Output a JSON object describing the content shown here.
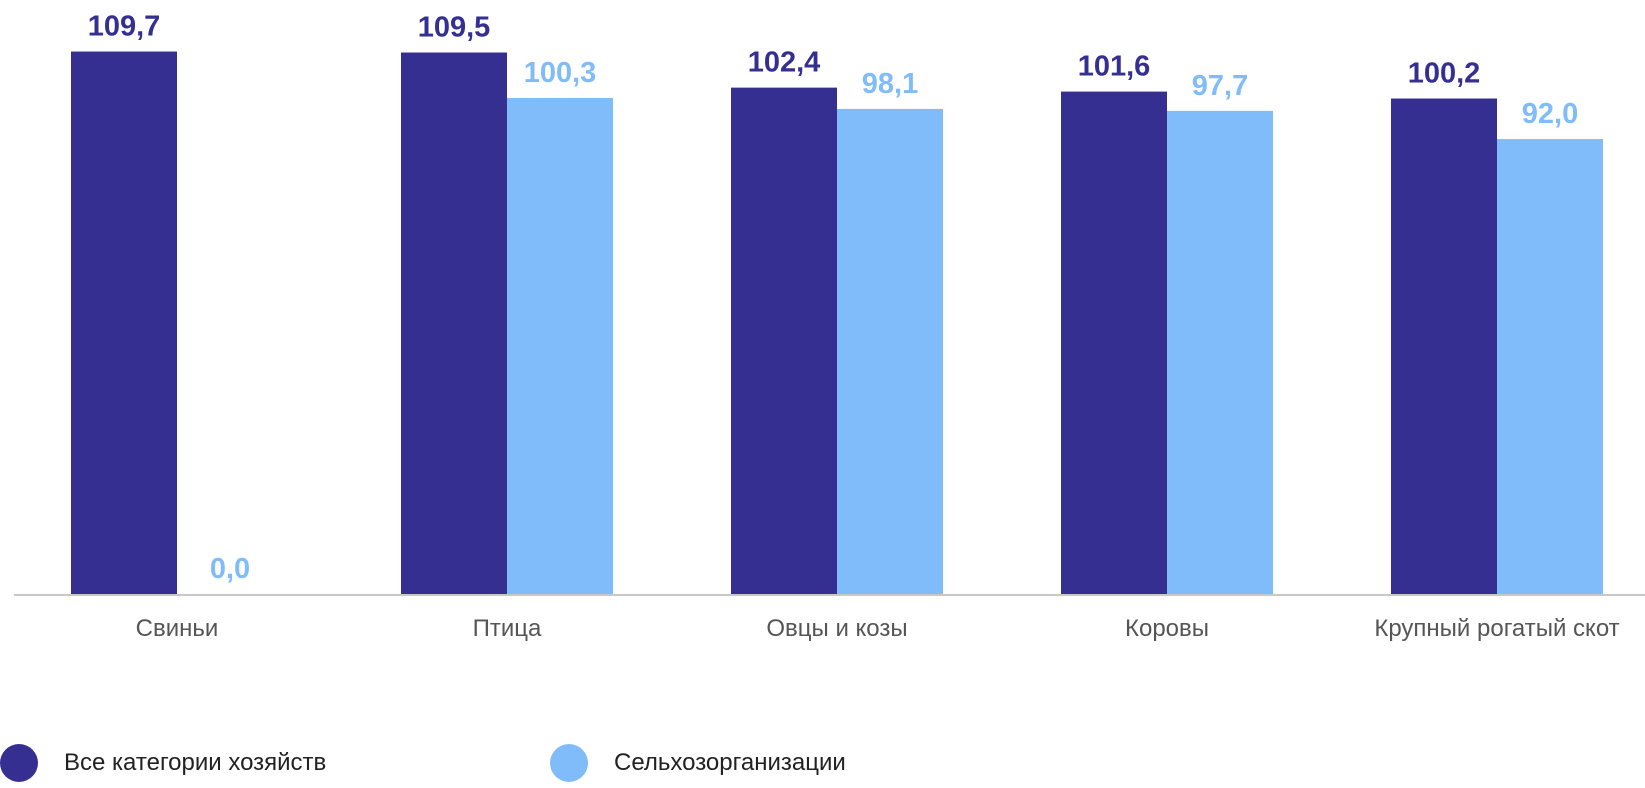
{
  "chart_data": {
    "type": "bar",
    "categories": [
      "Свиньи",
      "Птица",
      "Овцы и козы",
      "Коровы",
      "Крупный рогатый скот"
    ],
    "series": [
      {
        "name": "Все категории хозяйств",
        "values": [
          109.7,
          109.5,
          102.4,
          101.6,
          100.2
        ],
        "labels": [
          "109,7",
          "109,5",
          "102,4",
          "101,6",
          "100,2"
        ],
        "color": "#352f92"
      },
      {
        "name": "Сельхозорганизации",
        "values": [
          0.0,
          100.3,
          98.1,
          97.7,
          92.0
        ],
        "labels": [
          "0,0",
          "100,3",
          "98,1",
          "97,7",
          "92,0"
        ],
        "color": "#80bcfa"
      }
    ],
    "ylim": [
      0,
      110
    ],
    "grid": false,
    "legend": "bottom-left",
    "axis_color": "#c8c8c8",
    "category_label_color": "#555555"
  }
}
